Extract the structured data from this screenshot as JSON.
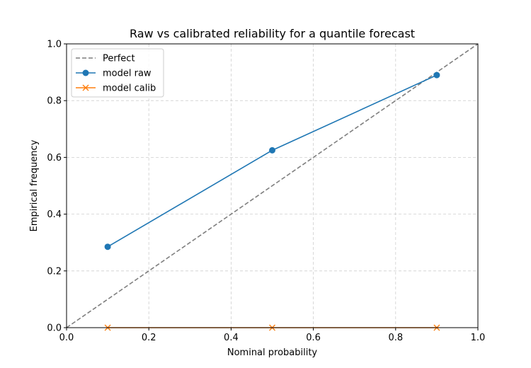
{
  "chart_data": {
    "type": "line",
    "title": "Raw vs calibrated reliability for a quantile forecast",
    "xlabel": "Nominal probability",
    "ylabel": "Empirical frequency",
    "xlim": [
      0.0,
      1.0
    ],
    "ylim": [
      0.0,
      1.0
    ],
    "xticks": [
      "0.0",
      "0.2",
      "0.4",
      "0.6",
      "0.8",
      "1.0"
    ],
    "yticks": [
      "0.0",
      "0.2",
      "0.4",
      "0.6",
      "0.8",
      "1.0"
    ],
    "grid": true,
    "legend_position": "top-left",
    "series": [
      {
        "name": "Perfect",
        "style": "dashed",
        "marker": "none",
        "color": "#7f7f7f",
        "x": [
          0.0,
          1.0
        ],
        "y": [
          0.0,
          1.0
        ]
      },
      {
        "name": "model raw",
        "style": "solid",
        "marker": "circle",
        "color": "#1f77b4",
        "x": [
          0.1,
          0.5,
          0.9
        ],
        "y": [
          0.285,
          0.625,
          0.89
        ]
      },
      {
        "name": "model calib",
        "style": "solid",
        "marker": "x",
        "color": "#ff7f0e",
        "x": [
          0.1,
          0.5,
          0.9
        ],
        "y": [
          0.0,
          0.0,
          0.0
        ]
      }
    ]
  }
}
